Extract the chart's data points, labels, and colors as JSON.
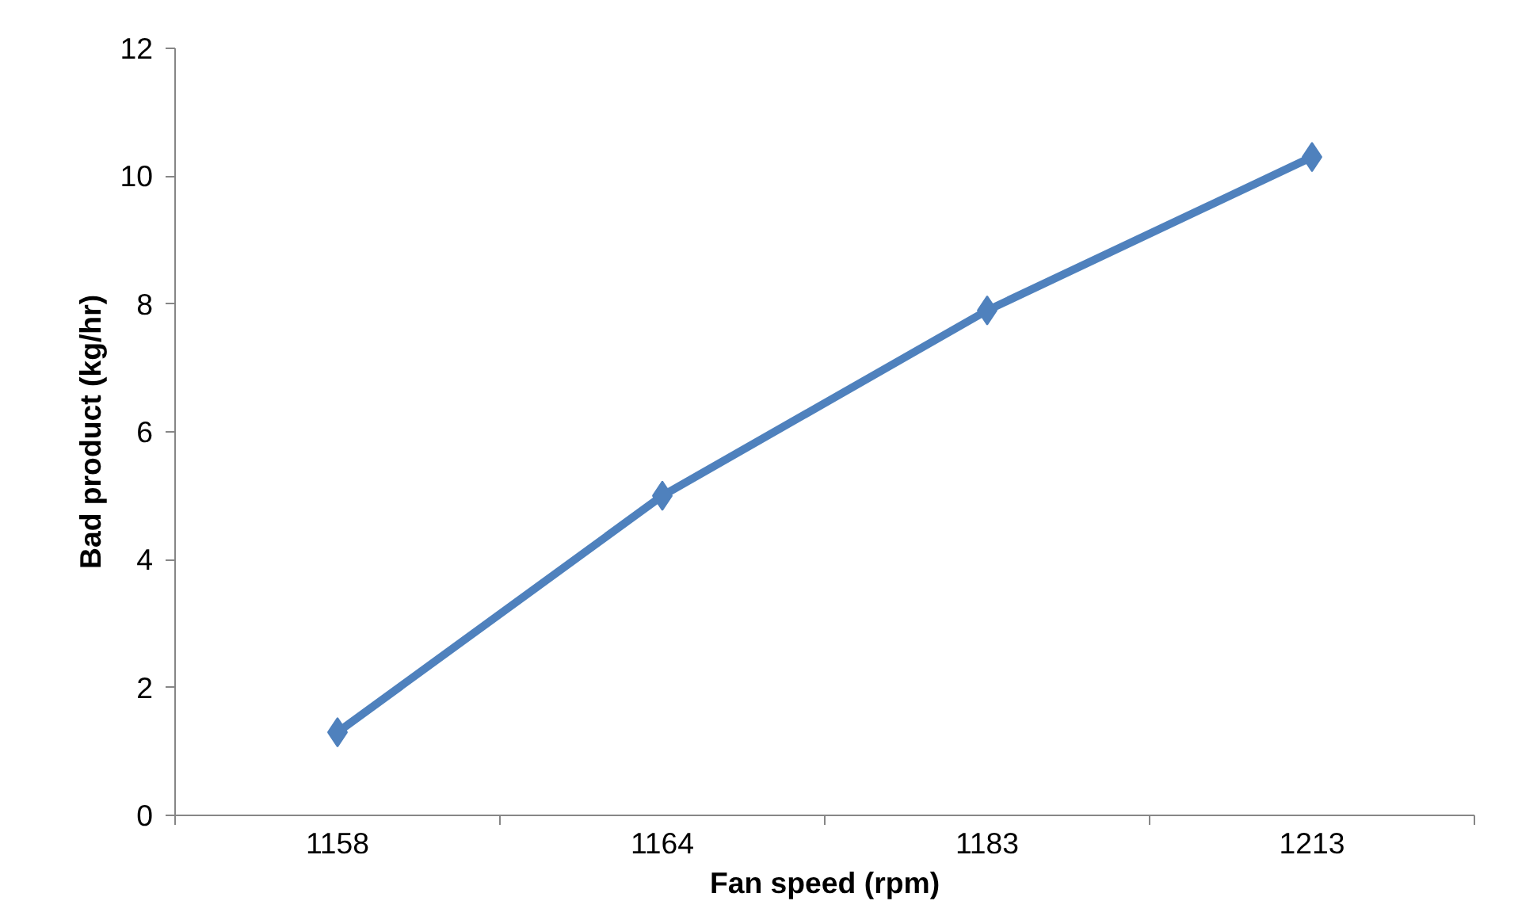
{
  "chart_data": {
    "type": "line",
    "xlabel": "Fan speed (rpm)",
    "ylabel": "Bad product (kg/hr)",
    "categories": [
      "1158",
      "1164",
      "1183",
      "1213"
    ],
    "series": [
      {
        "color": "#4f81bd",
        "values": [
          1.3,
          5.0,
          7.9,
          10.3
        ]
      }
    ],
    "ylim": [
      0,
      12
    ],
    "yticks": [
      0,
      2,
      4,
      6,
      8,
      10,
      12
    ],
    "marker": "diamond",
    "line_style": "solid"
  }
}
